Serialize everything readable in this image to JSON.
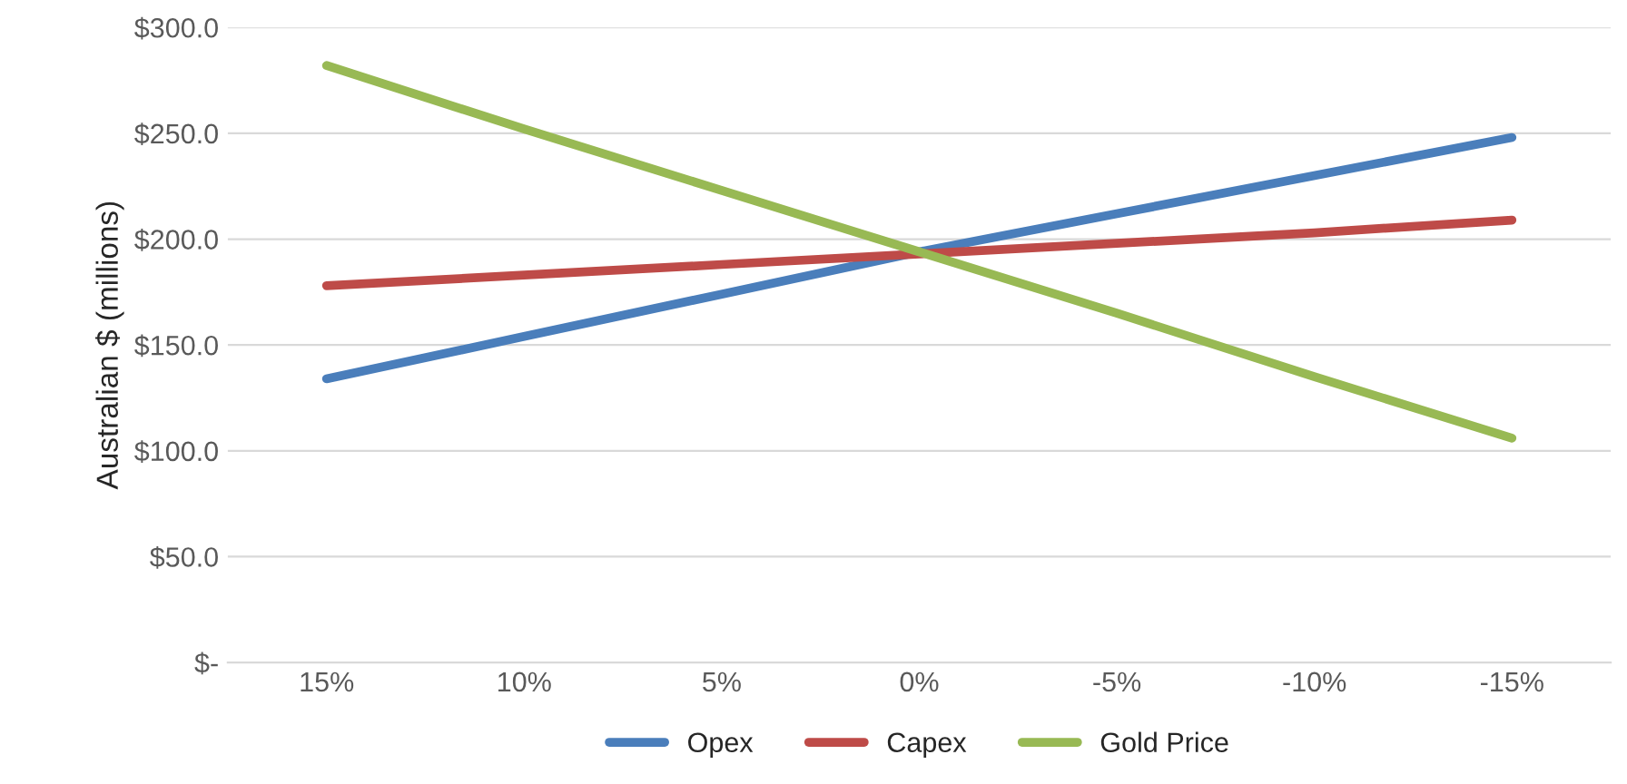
{
  "chart_data": {
    "type": "line",
    "ylabel": "Australian $ (millions)",
    "categories": [
      "15%",
      "10%",
      "5%",
      "0%",
      "-5%",
      "-10%",
      "-15%"
    ],
    "series": [
      {
        "name": "Opex",
        "color": "#4a7ebb",
        "values": [
          134,
          154,
          174,
          194,
          212,
          230,
          248
        ]
      },
      {
        "name": "Capex",
        "color": "#be4b48",
        "values": [
          178,
          183,
          188,
          193,
          198,
          203,
          209
        ]
      },
      {
        "name": "Gold Price",
        "color": "#98b954",
        "values": [
          282,
          252,
          223,
          194,
          165,
          135,
          106
        ]
      }
    ],
    "ylim": [
      0,
      300
    ],
    "yticks": [
      {
        "value": 0,
        "label": "$-"
      },
      {
        "value": 50,
        "label": "$50.0"
      },
      {
        "value": 100,
        "label": "$100.0"
      },
      {
        "value": 150,
        "label": "$150.0"
      },
      {
        "value": 200,
        "label": "$200.0"
      },
      {
        "value": 250,
        "label": "$250.0"
      },
      {
        "value": 300,
        "label": "$300.0"
      }
    ],
    "grid": "y",
    "legend": "bottom",
    "marker": "none",
    "line_style": "solid"
  }
}
